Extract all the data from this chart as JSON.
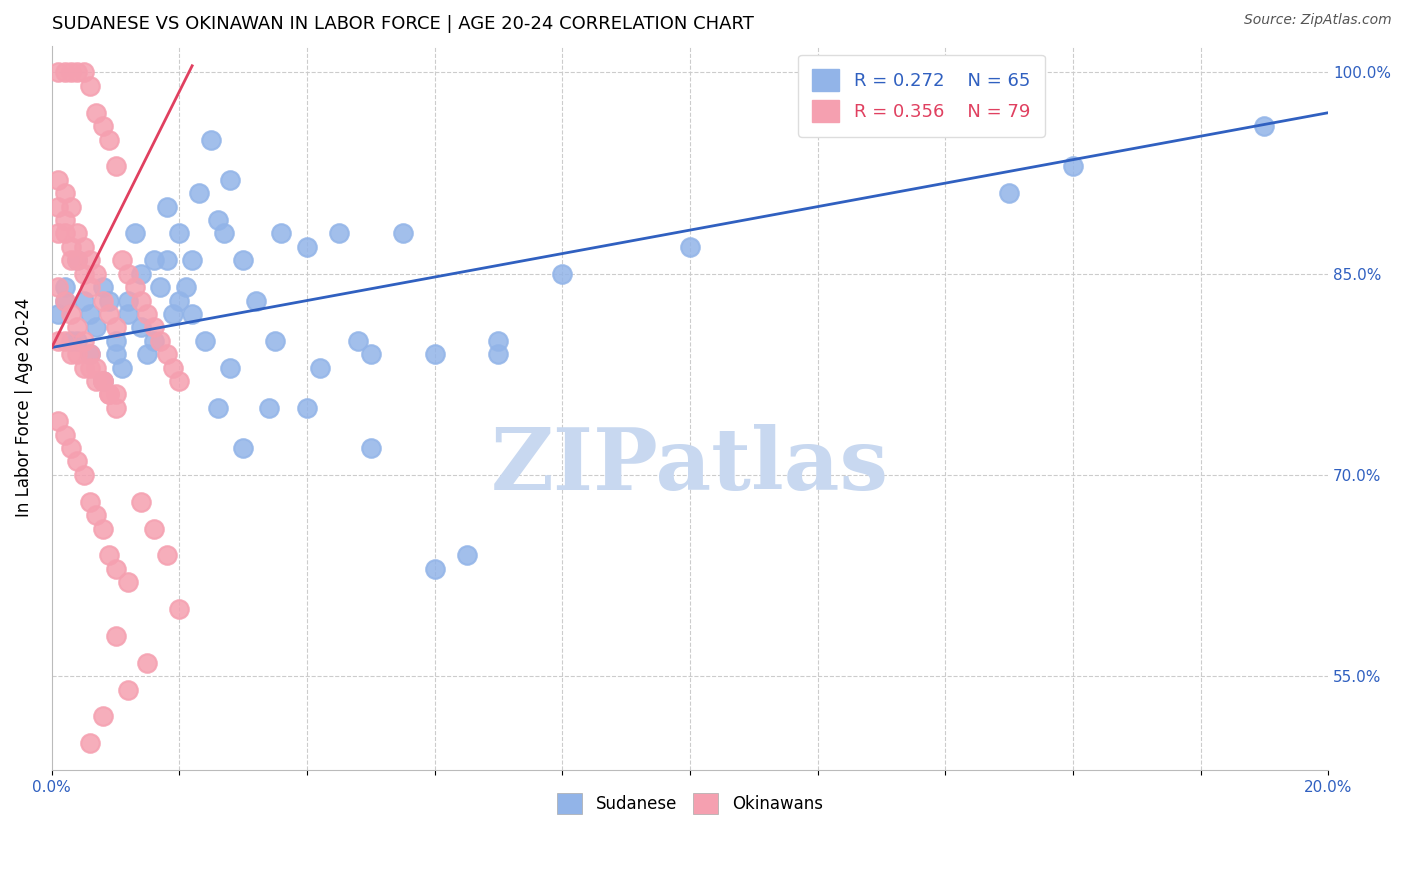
{
  "title": "SUDANESE VS OKINAWAN IN LABOR FORCE | AGE 20-24 CORRELATION CHART",
  "source_text": "Source: ZipAtlas.com",
  "xlabel": "",
  "ylabel": "In Labor Force | Age 20-24",
  "xlim": [
    0.0,
    0.2
  ],
  "ylim": [
    0.48,
    1.02
  ],
  "xticks": [
    0.0,
    0.02,
    0.04,
    0.06,
    0.08,
    0.1,
    0.12,
    0.14,
    0.16,
    0.18,
    0.2
  ],
  "xtick_labels": [
    "0.0%",
    "",
    "",
    "",
    "",
    "",
    "",
    "",
    "",
    "",
    "20.0%"
  ],
  "ytick_labels": [
    "55.0%",
    "70.0%",
    "85.0%",
    "100.0%"
  ],
  "ytick_positions": [
    0.55,
    0.7,
    0.85,
    1.0
  ],
  "blue_R": 0.272,
  "blue_N": 65,
  "pink_R": 0.356,
  "pink_N": 79,
  "blue_color": "#92b4e8",
  "pink_color": "#f5a0b0",
  "blue_line_color": "#3060c0",
  "pink_line_color": "#e04060",
  "legend_R_blue": "R = 0.272",
  "legend_N_blue": "N = 65",
  "legend_R_pink": "R = 0.356",
  "legend_N_pink": "N = 79",
  "watermark": "ZIPatlas",
  "watermark_color": "#c8d8f0",
  "blue_scatter_x": [
    0.001,
    0.002,
    0.003,
    0.004,
    0.005,
    0.006,
    0.007,
    0.008,
    0.009,
    0.01,
    0.011,
    0.012,
    0.013,
    0.014,
    0.015,
    0.016,
    0.017,
    0.018,
    0.019,
    0.02,
    0.021,
    0.022,
    0.023,
    0.025,
    0.026,
    0.027,
    0.028,
    0.03,
    0.032,
    0.034,
    0.036,
    0.04,
    0.042,
    0.045,
    0.048,
    0.05,
    0.055,
    0.06,
    0.065,
    0.07,
    0.002,
    0.004,
    0.006,
    0.008,
    0.01,
    0.012,
    0.014,
    0.016,
    0.018,
    0.02,
    0.022,
    0.024,
    0.026,
    0.028,
    0.03,
    0.035,
    0.04,
    0.05,
    0.06,
    0.07,
    0.08,
    0.1,
    0.15,
    0.16,
    0.19
  ],
  "blue_scatter_y": [
    0.82,
    0.84,
    0.8,
    0.86,
    0.83,
    0.79,
    0.81,
    0.77,
    0.83,
    0.8,
    0.78,
    0.82,
    0.88,
    0.85,
    0.79,
    0.86,
    0.84,
    0.9,
    0.82,
    0.88,
    0.84,
    0.86,
    0.91,
    0.95,
    0.89,
    0.88,
    0.92,
    0.86,
    0.83,
    0.75,
    0.88,
    0.87,
    0.78,
    0.88,
    0.8,
    0.79,
    0.88,
    0.79,
    0.64,
    0.79,
    0.83,
    0.8,
    0.82,
    0.84,
    0.79,
    0.83,
    0.81,
    0.8,
    0.86,
    0.83,
    0.82,
    0.8,
    0.75,
    0.78,
    0.72,
    0.8,
    0.75,
    0.72,
    0.63,
    0.8,
    0.85,
    0.87,
    0.91,
    0.93,
    0.96
  ],
  "pink_scatter_x": [
    0.001,
    0.002,
    0.003,
    0.004,
    0.005,
    0.006,
    0.007,
    0.008,
    0.009,
    0.01,
    0.001,
    0.002,
    0.003,
    0.004,
    0.005,
    0.006,
    0.007,
    0.008,
    0.009,
    0.01,
    0.001,
    0.002,
    0.003,
    0.004,
    0.005,
    0.006,
    0.007,
    0.008,
    0.009,
    0.01,
    0.001,
    0.002,
    0.003,
    0.004,
    0.005,
    0.006,
    0.007,
    0.008,
    0.009,
    0.01,
    0.001,
    0.002,
    0.003,
    0.004,
    0.005,
    0.006,
    0.007,
    0.008,
    0.009,
    0.01,
    0.011,
    0.012,
    0.013,
    0.014,
    0.015,
    0.016,
    0.017,
    0.018,
    0.019,
    0.02,
    0.012,
    0.014,
    0.016,
    0.018,
    0.02,
    0.015,
    0.01,
    0.012,
    0.008,
    0.006,
    0.001,
    0.002,
    0.003,
    0.001,
    0.002,
    0.003,
    0.004,
    0.005,
    0.006
  ],
  "pink_scatter_y": [
    1.0,
    1.0,
    1.0,
    1.0,
    1.0,
    0.99,
    0.97,
    0.96,
    0.95,
    0.93,
    0.9,
    0.88,
    0.86,
    0.88,
    0.87,
    0.86,
    0.85,
    0.83,
    0.82,
    0.81,
    0.8,
    0.8,
    0.79,
    0.79,
    0.78,
    0.78,
    0.77,
    0.77,
    0.76,
    0.76,
    0.84,
    0.83,
    0.82,
    0.81,
    0.8,
    0.79,
    0.78,
    0.77,
    0.76,
    0.75,
    0.74,
    0.73,
    0.72,
    0.71,
    0.7,
    0.68,
    0.67,
    0.66,
    0.64,
    0.63,
    0.86,
    0.85,
    0.84,
    0.83,
    0.82,
    0.81,
    0.8,
    0.79,
    0.78,
    0.77,
    0.62,
    0.68,
    0.66,
    0.64,
    0.6,
    0.56,
    0.58,
    0.54,
    0.52,
    0.5,
    0.92,
    0.91,
    0.9,
    0.88,
    0.89,
    0.87,
    0.86,
    0.85,
    0.84
  ]
}
